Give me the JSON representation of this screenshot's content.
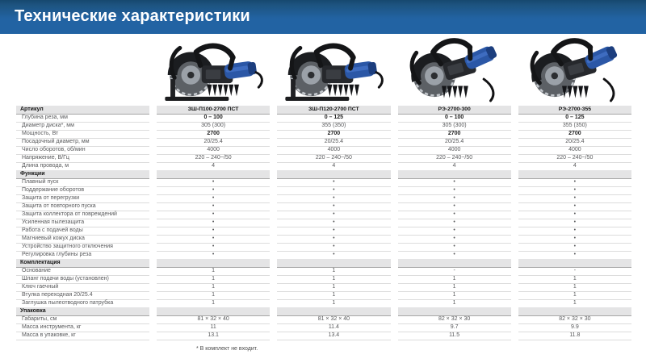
{
  "header": {
    "title": "Технические характеристики"
  },
  "colors": {
    "header_bg": "#2263a3",
    "header_bg_dark": "#16486f",
    "title_color": "#ffffff",
    "section_bg": "#e4e4e5",
    "row_border": "#dcdcdc",
    "text_color": "#58595b",
    "product_blue": "#2b57a6"
  },
  "icons": {
    "product_image": "cutoff-saw-illustration",
    "bullet": "•"
  },
  "products": [
    "ЗШ-П100-2700 ПСТ",
    "ЗШ-П120-2700 ПСТ",
    "РЭ-2700-300",
    "РЭ-2700-355"
  ],
  "table": {
    "rows": [
      {
        "type": "section",
        "label": "Артикул",
        "values": [
          "ЗШ-П100-2700 ПСТ",
          "ЗШ-П120-2700 ПСТ",
          "РЭ-2700-300",
          "РЭ-2700-355"
        ]
      },
      {
        "type": "data",
        "bold": true,
        "label": "Глубина реза, мм",
        "values": [
          "0 – 100",
          "0 – 125",
          "0 – 100",
          "0 – 125"
        ]
      },
      {
        "type": "data",
        "label": "Диаметр диска*, мм",
        "values": [
          "305 (300)",
          "355 (350)",
          "305 (300)",
          "355 (350)"
        ]
      },
      {
        "type": "data",
        "bold": true,
        "label": "Мощность, Вт",
        "values": [
          "2700",
          "2700",
          "2700",
          "2700"
        ]
      },
      {
        "type": "data",
        "label": "Посадочный диаметр, мм",
        "values": [
          "20/25.4",
          "20/25.4",
          "20/25.4",
          "20/25.4"
        ]
      },
      {
        "type": "data",
        "label": "Число оборотов, об/мин",
        "values": [
          "4000",
          "4000",
          "4000",
          "4000"
        ]
      },
      {
        "type": "data",
        "label": "Напряжение, В/Гц",
        "values": [
          "220 – 240~/50",
          "220 – 240~/50",
          "220 – 240~/50",
          "220 – 240~/50"
        ]
      },
      {
        "type": "data",
        "label": "Длина провода, м",
        "values": [
          "4",
          "4",
          "4",
          "4"
        ]
      },
      {
        "type": "section",
        "label": "Функции"
      },
      {
        "type": "data",
        "label": "Плавный пуск",
        "values": [
          "•",
          "•",
          "•",
          "•"
        ]
      },
      {
        "type": "data",
        "label": "Поддержание оборотов",
        "values": [
          "•",
          "•",
          "•",
          "•"
        ]
      },
      {
        "type": "data",
        "label": "Защита от перегрузки",
        "values": [
          "•",
          "•",
          "•",
          "•"
        ]
      },
      {
        "type": "data",
        "label": "Защита от повторного пуска",
        "values": [
          "•",
          "•",
          "•",
          "•"
        ]
      },
      {
        "type": "data",
        "label": "Защита коллектора от повреждений",
        "values": [
          "•",
          "•",
          "•",
          "•"
        ]
      },
      {
        "type": "data",
        "label": "Усиленная пылезащита",
        "values": [
          "•",
          "•",
          "•",
          "•"
        ]
      },
      {
        "type": "data",
        "label": "Работа с подачей воды",
        "values": [
          "•",
          "•",
          "•",
          "•"
        ]
      },
      {
        "type": "data",
        "label": "Магниевый кожух диска",
        "values": [
          "•",
          "•",
          "•",
          "•"
        ]
      },
      {
        "type": "data",
        "label": "Устройство защитного отключения",
        "values": [
          "•",
          "•",
          "•",
          "•"
        ]
      },
      {
        "type": "data",
        "label": "Регулировка глубины реза",
        "values": [
          "•",
          "•",
          "•",
          "•"
        ]
      },
      {
        "type": "section",
        "label": "Комплектация"
      },
      {
        "type": "data",
        "label": "Основание",
        "values": [
          "1",
          "1",
          "-",
          "-"
        ]
      },
      {
        "type": "data",
        "label": "Шланг подачи воды (установлен)",
        "values": [
          "1",
          "1",
          "1",
          "1"
        ]
      },
      {
        "type": "data",
        "label": "Ключ гаечный",
        "values": [
          "1",
          "1",
          "1",
          "1"
        ]
      },
      {
        "type": "data",
        "label": "Втулка переходная 20/25.4",
        "values": [
          "1",
          "1",
          "1",
          "1"
        ]
      },
      {
        "type": "data",
        "label": "Заглушка пылеотводного патрубка",
        "values": [
          "1",
          "1",
          "1",
          "1"
        ]
      },
      {
        "type": "section",
        "label": "Упаковка"
      },
      {
        "type": "data",
        "label": "Габариты, см",
        "values": [
          "81 × 32 × 40",
          "81 × 32 × 40",
          "82 × 32 × 30",
          "82 × 32 × 30"
        ]
      },
      {
        "type": "data",
        "label": "Масса инструмента, кг",
        "values": [
          "11",
          "11.4",
          "9.7",
          "9.9"
        ]
      },
      {
        "type": "data",
        "label": "Масса в упаковке, кг",
        "values": [
          "13.1",
          "13.4",
          "11.5",
          "11.8"
        ]
      }
    ]
  },
  "footnote": "* В комплект не входит."
}
